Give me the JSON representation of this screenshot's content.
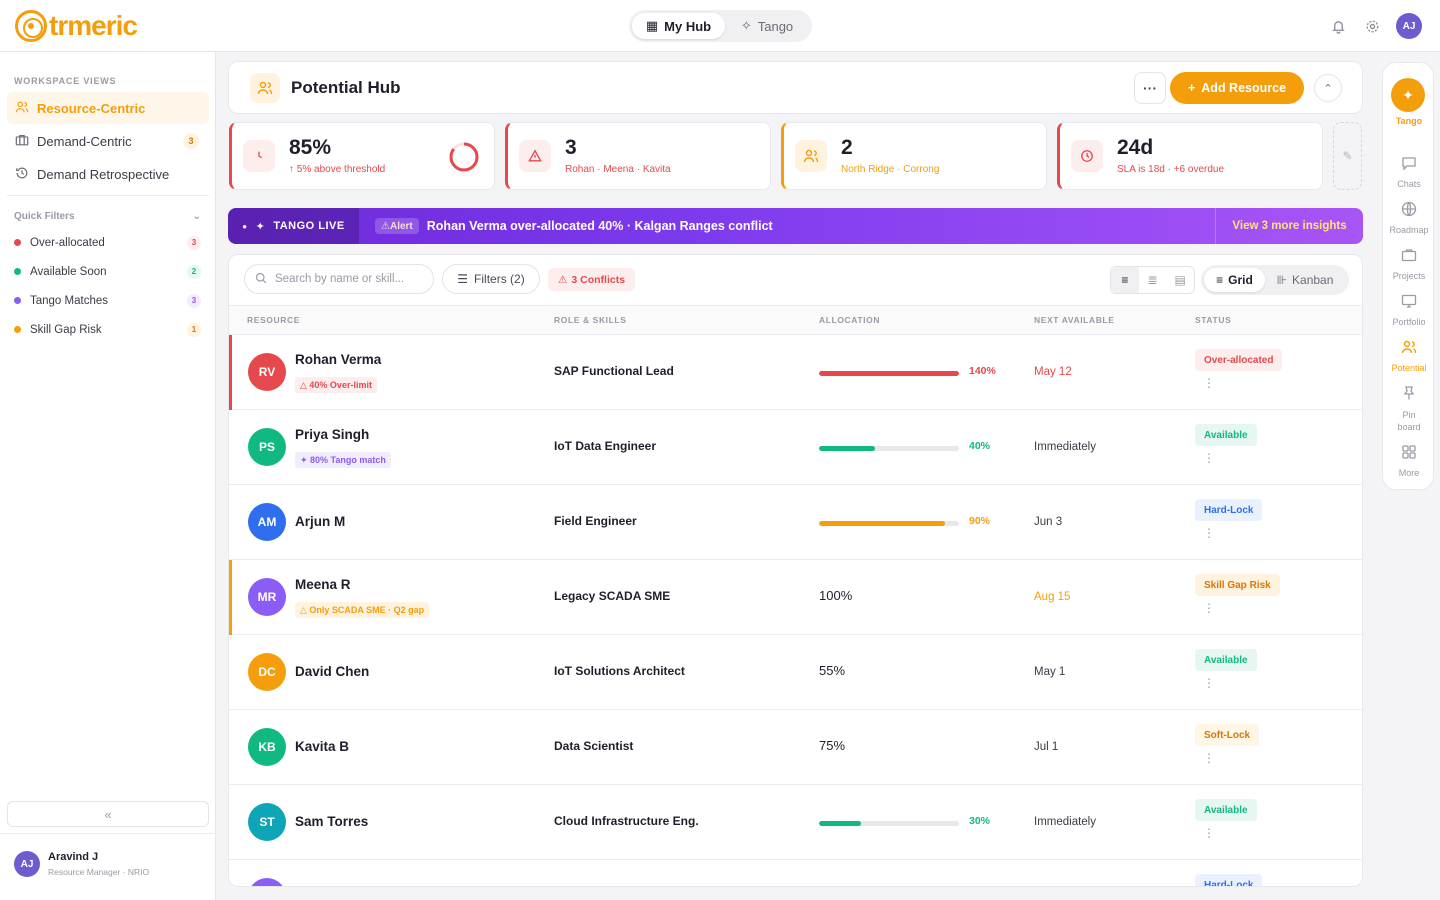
{
  "brand": {
    "name": "trmeric"
  },
  "topbar": {
    "tabs": [
      {
        "label": "My Hub"
      },
      {
        "label": "Tango"
      }
    ],
    "user_initials": "AJ"
  },
  "sidebar": {
    "section_title": "WORKSPACE VIEWS",
    "views": [
      {
        "label": "Resource-Centric"
      },
      {
        "label": "Demand-Centric",
        "count": "3"
      },
      {
        "label": "Demand Retrospective"
      }
    ],
    "quick_filters_title": "Quick Filters",
    "quick_filters": [
      {
        "label": "Over-allocated",
        "count": "3",
        "color": "#e5484d"
      },
      {
        "label": "Available Soon",
        "count": "2",
        "color": "#10b981"
      },
      {
        "label": "Tango Matches",
        "count": "3",
        "color": "#8b5cf6"
      },
      {
        "label": "Skill Gap Risk",
        "count": "1",
        "color": "#f59e0b"
      }
    ],
    "collapse_glyph": "«",
    "user": {
      "initials": "AJ",
      "name": "Aravind J",
      "role": "Resource Manager · NRIO"
    }
  },
  "header": {
    "title": "Potential Hub",
    "more_glyph": "···",
    "add_label": "Add Resource"
  },
  "kpis": [
    {
      "value": "85%",
      "sub": "↑ 5% above threshold",
      "color": "#e5484d"
    },
    {
      "value": "3",
      "sub": "Rohan · Meena · Kavita",
      "color": "#e5484d"
    },
    {
      "value": "2",
      "sub": "North Ridge · Corrong",
      "color": "#f59e0b"
    },
    {
      "value": "24d",
      "sub": "SLA is 18d · +6 overdue",
      "color": "#e5484d"
    }
  ],
  "tango": {
    "live_label": "TANGO LIVE",
    "alert_label": "Alert",
    "message": "Rohan Verma over-allocated 40% · Kalgan Ranges conflict",
    "more_label": "View 3 more insights"
  },
  "toolbar": {
    "search_placeholder": "Search by name or skill...",
    "filters_label": "Filters (2)",
    "conflicts_label": "3 Conflicts",
    "grid_label": "Grid",
    "kanban_label": "Kanban"
  },
  "table": {
    "columns": [
      "RESOURCE",
      "ROLE & SKILLS",
      "ALLOCATION",
      "NEXT AVAILABLE",
      "STATUS"
    ],
    "rows": [
      {
        "initials": "RV",
        "name": "Rohan Verma",
        "tag": "40% Over-limit",
        "role": "SAP Functional Lead",
        "allocation": "140%",
        "allocation_value": 1.4,
        "next": "May 12",
        "status": "Over-allocated"
      },
      {
        "initials": "PS",
        "name": "Priya Singh",
        "tag": "✦ 80% Tango match",
        "role": "IoT Data Engineer",
        "allocation": "40%",
        "allocation_value": 0.4,
        "next": "Immediately",
        "status": "Available"
      },
      {
        "initials": "AM",
        "name": "Arjun M",
        "tag": "",
        "role": "Field Engineer",
        "allocation": "90%",
        "allocation_value": 0.9,
        "next": "Jun 3",
        "status": "Hard-Lock"
      },
      {
        "initials": "MR",
        "name": "Meena R",
        "tag": "Only SCADA SME · Q2 gap",
        "role": "Legacy SCADA SME",
        "allocation": "100%",
        "next": "Aug 15",
        "status": "Skill Gap Risk"
      },
      {
        "initials": "DC",
        "name": "David Chen",
        "tag": "",
        "role": "IoT Solutions Architect",
        "allocation": "55%",
        "next": "May 1",
        "status": "Available"
      },
      {
        "initials": "KB",
        "name": "Kavita B",
        "tag": "",
        "role": "Data Scientist",
        "allocation": "75%",
        "next": "Jul 1",
        "status": "Soft-Lock"
      },
      {
        "initials": "ST",
        "name": "Sam Torres",
        "tag": "",
        "role": "Cloud Infrastructure Eng.",
        "allocation": "30%",
        "allocation_value": 0.3,
        "next": "Immediately",
        "status": "Available"
      },
      {
        "initials": "",
        "name": "",
        "tag": "",
        "role": "",
        "allocation": "",
        "next": "",
        "status": "Hard-Lock"
      }
    ],
    "kebab_glyph": "⋮"
  },
  "rail": {
    "items": [
      {
        "label": "Tango"
      },
      {
        "label": "Chats"
      },
      {
        "label": "Roadmap"
      },
      {
        "label": "Projects"
      },
      {
        "label": "Portfolio"
      },
      {
        "label": "Potential"
      },
      {
        "label": "Pin board"
      },
      {
        "label": "More"
      }
    ]
  }
}
